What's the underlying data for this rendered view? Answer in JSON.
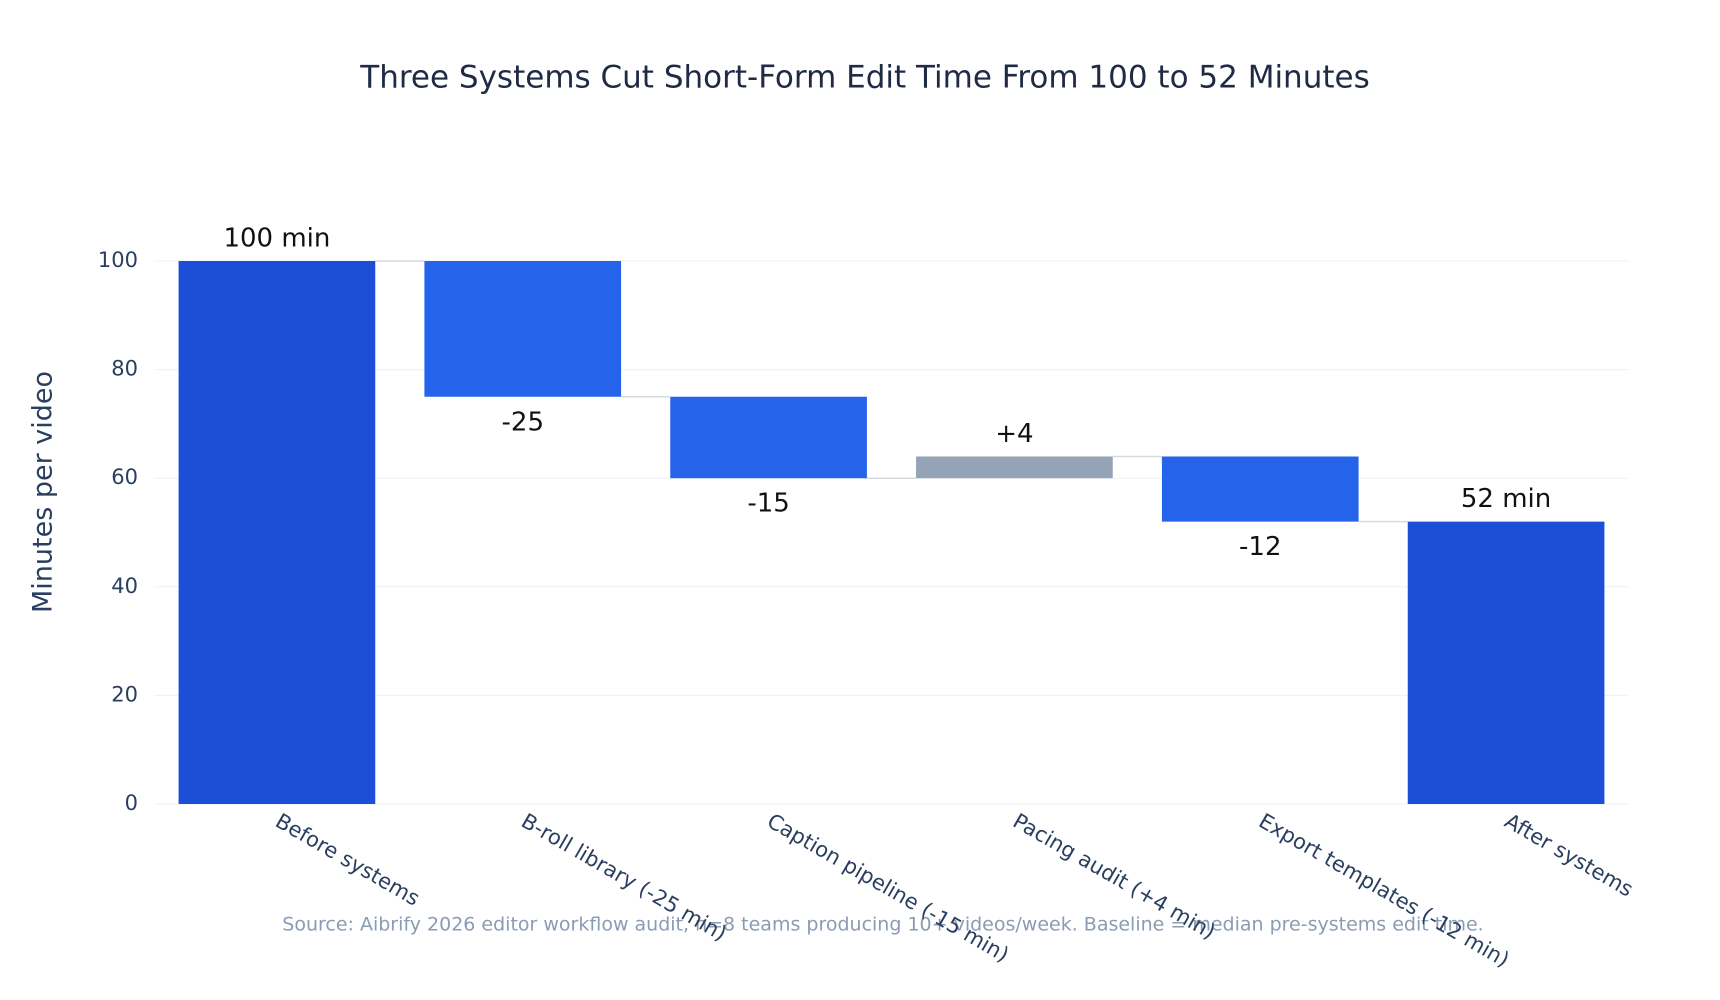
{
  "chart_data": {
    "type": "waterfall",
    "title": "Three Systems Cut Short-Form Edit Time From 100 to 52 Minutes",
    "y_label": "Minutes per video",
    "source": "Source: Aibrify 2026 editor workflow audit, n=8 teams producing 10+ videos/week. Baseline = median pre-systems edit time.",
    "categories": [
      "Before systems",
      "B-roll library (-25 min)",
      "Caption pipeline (-15 min)",
      "Pacing audit (+4 min)",
      "Export templates (-12 min)",
      "After systems"
    ],
    "measures": [
      "absolute",
      "relative",
      "relative",
      "relative",
      "relative",
      "total"
    ],
    "values": [
      100,
      -25,
      -15,
      4,
      -12,
      52
    ],
    "value_labels": [
      "100 min",
      "-25",
      "-15",
      "+4",
      "-12",
      "52 min"
    ],
    "colors": {
      "total": "#1d4ed8",
      "decrease": "#2563eb",
      "increase": "#94a3b8"
    },
    "ylim": [
      0,
      100
    ],
    "yticks": [
      0,
      20,
      40,
      60,
      80,
      100
    ],
    "grid": true
  }
}
